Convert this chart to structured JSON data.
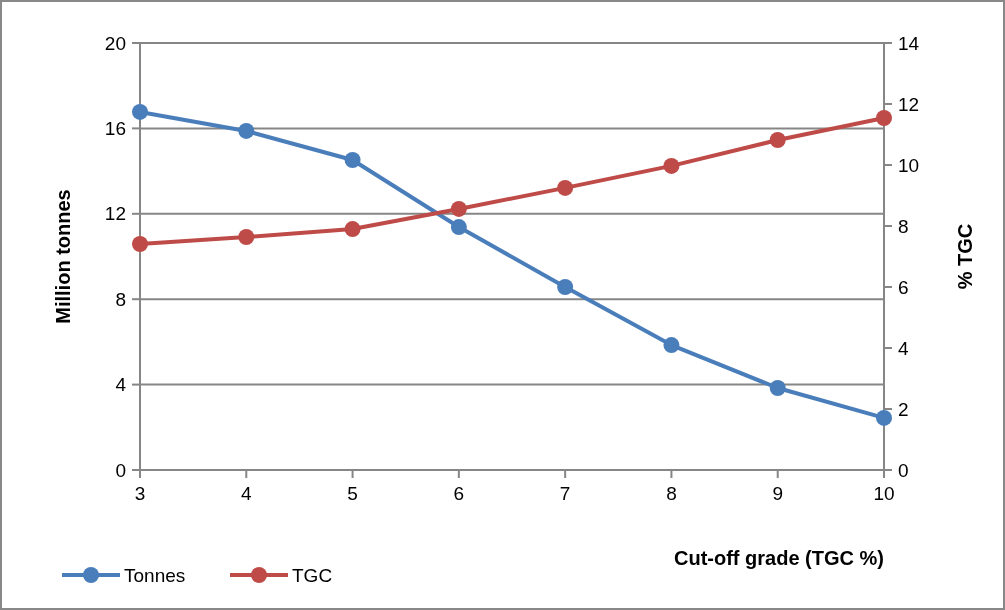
{
  "chart_data": {
    "type": "line",
    "xlabel": "Cut-off grade (TGC %)",
    "ylabel": "Million tonnes",
    "y2label": "% TGC",
    "x": [
      3,
      4,
      5,
      6,
      7,
      8,
      9,
      10
    ],
    "series": [
      {
        "name": "Tonnes",
        "color": "#4a7ebb",
        "values": [
          16.77,
          15.88,
          14.52,
          11.38,
          8.57,
          5.85,
          3.84,
          2.44
        ]
      },
      {
        "name": "TGC",
        "color": "#be4b48",
        "axis": "y2",
        "values": [
          7.41,
          7.64,
          7.9,
          8.56,
          9.25,
          9.97,
          10.82,
          11.54
        ]
      }
    ],
    "xlim": [
      3,
      10
    ],
    "xticks": [
      3,
      4,
      5,
      6,
      7,
      8,
      9,
      10
    ],
    "ylim": [
      0,
      20
    ],
    "yticks": [
      0,
      4,
      8,
      12,
      16,
      20
    ],
    "y2lim": [
      0,
      14
    ],
    "y2ticks": [
      0,
      2,
      4,
      6,
      8,
      10,
      12,
      14
    ],
    "grid": "y",
    "legend": "bottom left",
    "marker": "circle",
    "line_style": "solid"
  }
}
